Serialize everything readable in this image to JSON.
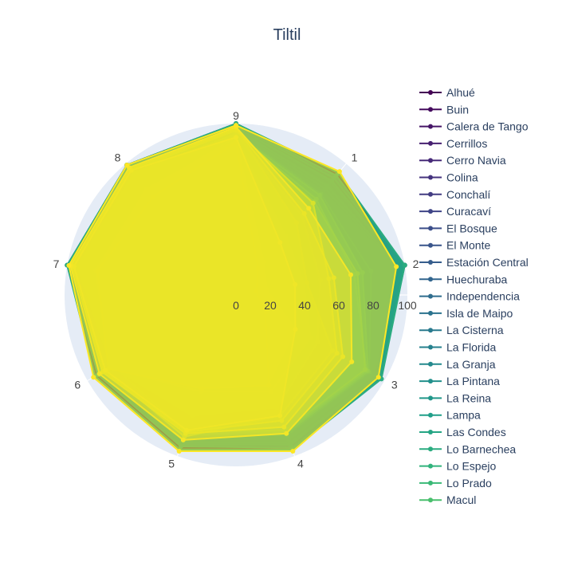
{
  "chart_data": {
    "type": "radar",
    "title": "Tiltil",
    "angular_categories": [
      "1",
      "2",
      "3",
      "4",
      "5",
      "6",
      "7",
      "8",
      "9"
    ],
    "radial_range": [
      0,
      100
    ],
    "radial_ticks": [
      "0",
      "20",
      "40",
      "60",
      "80",
      "100"
    ],
    "legend_position": "right",
    "series": [
      {
        "name": "Alhué",
        "values": [
          92,
          100,
          97,
          95,
          95,
          94,
          100,
          99,
          100
        ]
      },
      {
        "name": "Buin",
        "values": [
          88,
          98,
          95,
          92,
          92,
          90,
          98,
          97,
          98
        ]
      },
      {
        "name": "Calera de Tango",
        "values": [
          85,
          96,
          93,
          90,
          90,
          88,
          97,
          96,
          97
        ]
      },
      {
        "name": "Cerrillos",
        "values": [
          80,
          95,
          92,
          88,
          88,
          87,
          96,
          95,
          96
        ]
      },
      {
        "name": "Cerro Navia",
        "values": [
          75,
          93,
          90,
          86,
          87,
          85,
          95,
          94,
          95
        ]
      },
      {
        "name": "Colina",
        "values": [
          70,
          60,
          88,
          85,
          86,
          86,
          96,
          95,
          96
        ]
      },
      {
        "name": "Conchalí",
        "values": [
          72,
          92,
          89,
          84,
          85,
          84,
          94,
          93,
          94
        ]
      },
      {
        "name": "Curacaví",
        "values": [
          68,
          62,
          85,
          82,
          84,
          83,
          93,
          92,
          93
        ]
      },
      {
        "name": "El Bosque",
        "values": [
          78,
          94,
          91,
          87,
          88,
          86,
          95,
          94,
          95
        ]
      },
      {
        "name": "El Monte",
        "values": [
          82,
          96,
          93,
          90,
          90,
          88,
          97,
          96,
          97
        ]
      },
      {
        "name": "Estación Central",
        "values": [
          86,
          97,
          94,
          91,
          91,
          89,
          98,
          97,
          98
        ]
      },
      {
        "name": "Huechuraba",
        "values": [
          74,
          65,
          90,
          85,
          87,
          73,
          92,
          93,
          94
        ]
      },
      {
        "name": "Independencia",
        "values": [
          90,
          99,
          96,
          94,
          94,
          92,
          99,
          98,
          99
        ]
      },
      {
        "name": "Isla de Maipo",
        "values": [
          84,
          95,
          92,
          89,
          89,
          87,
          96,
          95,
          96
        ]
      },
      {
        "name": "La Cisterna",
        "values": [
          79,
          94,
          91,
          88,
          88,
          86,
          95,
          94,
          95
        ]
      },
      {
        "name": "La Florida",
        "values": [
          81,
          95,
          92,
          89,
          89,
          87,
          96,
          95,
          96
        ]
      },
      {
        "name": "La Granja",
        "values": [
          83,
          96,
          93,
          90,
          90,
          88,
          97,
          96,
          97
        ]
      },
      {
        "name": "La Pintana",
        "values": [
          87,
          98,
          95,
          92,
          92,
          90,
          98,
          97,
          98
        ]
      },
      {
        "name": "La Reina",
        "values": [
          89,
          99,
          96,
          93,
          93,
          91,
          99,
          98,
          99
        ]
      },
      {
        "name": "Lampa",
        "values": [
          91,
          100,
          97,
          95,
          94,
          93,
          100,
          99,
          100
        ]
      },
      {
        "name": "Las Condes",
        "values": [
          77,
          80,
          90,
          87,
          88,
          86,
          95,
          94,
          95
        ]
      },
      {
        "name": "Lo Barnechea",
        "values": [
          93,
          100,
          98,
          96,
          96,
          95,
          100,
          99,
          100
        ]
      },
      {
        "name": "Lo Espejo",
        "values": [
          76,
          75,
          89,
          86,
          87,
          85,
          94,
          93,
          94
        ]
      },
      {
        "name": "Lo Prado",
        "values": [
          73,
          70,
          88,
          85,
          86,
          84,
          94,
          93,
          94
        ]
      },
      {
        "name": "Macul",
        "values": [
          71,
          72,
          87,
          84,
          85,
          83,
          93,
          92,
          93
        ]
      },
      {
        "name": "",
        "values": [
          60,
          50,
          55,
          70,
          75,
          84,
          94,
          93,
          94
        ]
      },
      {
        "name": "",
        "values": [
          45,
          40,
          50,
          60,
          60,
          85,
          82,
          80,
          92
        ]
      },
      {
        "name": "",
        "values": [
          25,
          18,
          40,
          55,
          50,
          85,
          83,
          81,
          90
        ]
      },
      {
        "name": "",
        "values": [
          55,
          42,
          65,
          75,
          88,
          88,
          97,
          96,
          97
        ]
      },
      {
        "name": "",
        "values": [
          20,
          12,
          20,
          56,
          58,
          86,
          82,
          75,
          89
        ]
      },
      {
        "name": "",
        "values": [
          70,
          55,
          68,
          78,
          85,
          89,
          96,
          95,
          96
        ]
      },
      {
        "name": "",
        "values": [
          62,
          58,
          72,
          82,
          86,
          90,
          97,
          96,
          97
        ]
      },
      {
        "name": "",
        "values": [
          40,
          35,
          40,
          75,
          84,
          88,
          96,
          95,
          92
        ]
      },
      {
        "name": "",
        "values": [
          66,
          68,
          78,
          86,
          90,
          92,
          98,
          97,
          98
        ]
      },
      {
        "name": "",
        "values": [
          94,
          95,
          96,
          97,
          97,
          96,
          99,
          99,
          99
        ]
      }
    ]
  }
}
